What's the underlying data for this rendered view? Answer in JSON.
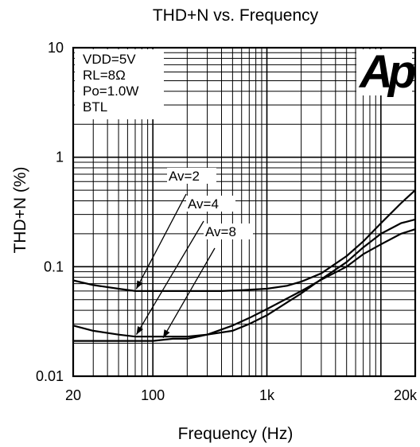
{
  "chart_data": {
    "type": "line",
    "title": "THD+N vs. Frequency",
    "xlabel": "Frequency (Hz)",
    "ylabel": "THD+N (%)",
    "xscale": "log",
    "yscale": "log",
    "xlim": [
      20,
      20000
    ],
    "ylim": [
      0.01,
      10
    ],
    "grid": true,
    "x_ticks": [
      {
        "value": 20,
        "label": "20"
      },
      {
        "value": 100,
        "label": "100"
      },
      {
        "value": 1000,
        "label": "1k"
      },
      {
        "value": 20000,
        "label": "20k"
      }
    ],
    "y_ticks": [
      {
        "value": 10,
        "label": "10"
      },
      {
        "value": 1,
        "label": "1"
      },
      {
        "value": 0.1,
        "label": "0.1"
      },
      {
        "value": 0.01,
        "label": "0.01"
      }
    ],
    "conditions": [
      "VDD=5V",
      "RL=8Ω",
      "Po=1.0W",
      "BTL"
    ],
    "logo": "Ap",
    "series": [
      {
        "name": "Av=2",
        "x": [
          20,
          30,
          50,
          70,
          100,
          200,
          400,
          600,
          1000,
          1500,
          2000,
          3000,
          5000,
          7000,
          10000,
          15000,
          20000
        ],
        "y": [
          0.075,
          0.068,
          0.063,
          0.06,
          0.06,
          0.06,
          0.06,
          0.061,
          0.063,
          0.067,
          0.073,
          0.087,
          0.125,
          0.17,
          0.25,
          0.38,
          0.5
        ]
      },
      {
        "name": "Av=4",
        "x": [
          20,
          30,
          50,
          70,
          100,
          150,
          200,
          300,
          500,
          700,
          1000,
          2000,
          3000,
          5000,
          7000,
          10000,
          15000,
          20000
        ],
        "y": [
          0.029,
          0.026,
          0.024,
          0.023,
          0.023,
          0.023,
          0.023,
          0.024,
          0.026,
          0.03,
          0.036,
          0.057,
          0.077,
          0.11,
          0.15,
          0.2,
          0.25,
          0.27
        ]
      },
      {
        "name": "Av=8",
        "x": [
          20,
          30,
          50,
          70,
          100,
          150,
          200,
          300,
          500,
          700,
          1000,
          2000,
          3000,
          5000,
          7000,
          10000,
          15000,
          20000
        ],
        "y": [
          0.021,
          0.021,
          0.021,
          0.021,
          0.021,
          0.022,
          0.022,
          0.024,
          0.029,
          0.034,
          0.041,
          0.06,
          0.076,
          0.1,
          0.13,
          0.16,
          0.2,
          0.22
        ]
      }
    ],
    "annotations": [
      {
        "text": "Av=2",
        "target_series": "Av=2",
        "target_x": 70
      },
      {
        "text": "Av=4",
        "target_series": "Av=4",
        "target_x": 70
      },
      {
        "text": "Av=8",
        "target_series": "Av=8",
        "target_x": 120
      }
    ]
  }
}
